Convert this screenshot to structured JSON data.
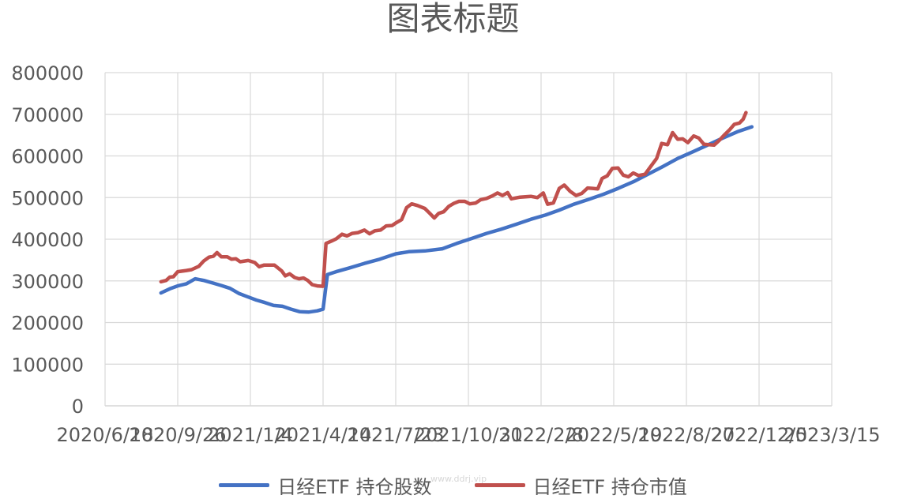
{
  "chart_data": {
    "type": "line",
    "title": "图表标题",
    "xlabel": "",
    "ylabel": "",
    "ylim": [
      0,
      800000
    ],
    "y_ticks": [
      "800000",
      "700000",
      "600000",
      "500000",
      "400000",
      "300000",
      "200000",
      "100000",
      "0"
    ],
    "x_tick_labels": [
      "2020/6/18",
      "2020/9/26",
      "2021/1/4",
      "2021/4/14",
      "2021/7/23",
      "2021/10/31",
      "2022/2/8",
      "2022/5/19",
      "2022/8/27",
      "2022/12/5",
      "2023/3/15"
    ],
    "xlim": [
      "2020/6/18",
      "2023/3/15"
    ],
    "grid": true,
    "legend_position": "bottom",
    "colors": {
      "series1": "#4472C4",
      "series2": "#C0504D",
      "grid": "#D9D9D9",
      "text": "#595959"
    },
    "series": [
      {
        "name": "日经ETF 持仓股数",
        "points": [
          [
            "2020/9/3",
            271000
          ],
          [
            "2020/9/15",
            281000
          ],
          [
            "2020/9/26",
            288000
          ],
          [
            "2020/10/8",
            293000
          ],
          [
            "2020/10/20",
            305000
          ],
          [
            "2020/11/1",
            301000
          ],
          [
            "2020/11/13",
            295000
          ],
          [
            "2020/11/25",
            289000
          ],
          [
            "2020/12/7",
            282000
          ],
          [
            "2020/12/19",
            270000
          ],
          [
            "2020/12/31",
            262000
          ],
          [
            "2021/1/12",
            254000
          ],
          [
            "2021/1/24",
            248000
          ],
          [
            "2021/2/5",
            241000
          ],
          [
            "2021/2/17",
            239000
          ],
          [
            "2021/3/1",
            232000
          ],
          [
            "2021/3/13",
            226000
          ],
          [
            "2021/3/25",
            225000
          ],
          [
            "2021/4/6",
            228000
          ],
          [
            "2021/4/14",
            232000
          ],
          [
            "2021/4/20",
            315000
          ],
          [
            "2021/5/2",
            322000
          ],
          [
            "2021/5/20",
            331000
          ],
          [
            "2021/6/10",
            342000
          ],
          [
            "2021/7/1",
            352000
          ],
          [
            "2021/7/23",
            365000
          ],
          [
            "2021/8/10",
            370000
          ],
          [
            "2021/9/1",
            372000
          ],
          [
            "2021/9/25",
            377000
          ],
          [
            "2021/10/15",
            390000
          ],
          [
            "2021/11/5",
            402000
          ],
          [
            "2021/11/25",
            414000
          ],
          [
            "2021/12/15",
            424000
          ],
          [
            "2022/1/5",
            436000
          ],
          [
            "2022/1/25",
            448000
          ],
          [
            "2022/2/14",
            458000
          ],
          [
            "2022/3/5",
            470000
          ],
          [
            "2022/3/25",
            484000
          ],
          [
            "2022/4/15",
            496000
          ],
          [
            "2022/5/5",
            508000
          ],
          [
            "2022/5/25",
            522000
          ],
          [
            "2022/6/15",
            538000
          ],
          [
            "2022/7/5",
            556000
          ],
          [
            "2022/7/25",
            574000
          ],
          [
            "2022/8/15",
            594000
          ],
          [
            "2022/9/5",
            610000
          ],
          [
            "2022/9/25",
            626000
          ],
          [
            "2022/10/15",
            642000
          ],
          [
            "2022/11/5",
            658000
          ],
          [
            "2022/11/25",
            670000
          ]
        ]
      },
      {
        "name": "日经ETF 持仓市值",
        "points": [
          [
            "2020/9/3",
            298000
          ],
          [
            "2020/9/10",
            301000
          ],
          [
            "2020/9/15",
            309000
          ],
          [
            "2020/9/20",
            310000
          ],
          [
            "2020/9/26",
            322000
          ],
          [
            "2020/10/8",
            325000
          ],
          [
            "2020/10/15",
            327000
          ],
          [
            "2020/10/25",
            335000
          ],
          [
            "2020/11/1",
            348000
          ],
          [
            "2020/11/8",
            357000
          ],
          [
            "2020/11/14",
            359000
          ],
          [
            "2020/11/19",
            368000
          ],
          [
            "2020/11/25",
            358000
          ],
          [
            "2020/12/3",
            358000
          ],
          [
            "2020/12/9",
            352000
          ],
          [
            "2020/12/15",
            353000
          ],
          [
            "2020/12/21",
            346000
          ],
          [
            "2021/1/1",
            349000
          ],
          [
            "2021/1/10",
            344000
          ],
          [
            "2021/1/16",
            334000
          ],
          [
            "2021/1/23",
            338000
          ],
          [
            "2021/2/6",
            338000
          ],
          [
            "2021/2/16",
            324000
          ],
          [
            "2021/2/21",
            312000
          ],
          [
            "2021/2/27",
            317000
          ],
          [
            "2021/3/6",
            308000
          ],
          [
            "2021/3/12",
            305000
          ],
          [
            "2021/3/18",
            307000
          ],
          [
            "2021/3/24",
            301000
          ],
          [
            "2021/3/30",
            291000
          ],
          [
            "2021/4/6",
            288000
          ],
          [
            "2021/4/14",
            287000
          ],
          [
            "2021/4/18",
            390000
          ],
          [
            "2021/4/25",
            395000
          ],
          [
            "2021/5/2",
            401000
          ],
          [
            "2021/5/10",
            412000
          ],
          [
            "2021/5/17",
            408000
          ],
          [
            "2021/5/24",
            414000
          ],
          [
            "2021/6/1",
            416000
          ],
          [
            "2021/6/10",
            422000
          ],
          [
            "2021/6/17",
            413000
          ],
          [
            "2021/6/24",
            420000
          ],
          [
            "2021/7/2",
            422000
          ],
          [
            "2021/7/10",
            432000
          ],
          [
            "2021/7/18",
            433000
          ],
          [
            "2021/7/24",
            440000
          ],
          [
            "2021/7/31",
            447000
          ],
          [
            "2021/8/7",
            476000
          ],
          [
            "2021/8/14",
            485000
          ],
          [
            "2021/8/22",
            481000
          ],
          [
            "2021/9/1",
            474000
          ],
          [
            "2021/9/8",
            462000
          ],
          [
            "2021/9/14",
            451000
          ],
          [
            "2021/9/20",
            462000
          ],
          [
            "2021/9/27",
            466000
          ],
          [
            "2021/10/4",
            479000
          ],
          [
            "2021/10/11",
            486000
          ],
          [
            "2021/10/18",
            491000
          ],
          [
            "2021/10/26",
            491000
          ],
          [
            "2021/11/2",
            485000
          ],
          [
            "2021/11/10",
            487000
          ],
          [
            "2021/11/17",
            495000
          ],
          [
            "2021/11/25",
            498000
          ],
          [
            "2021/12/3",
            504000
          ],
          [
            "2021/12/10",
            511000
          ],
          [
            "2021/12/17",
            505000
          ],
          [
            "2021/12/24",
            512000
          ],
          [
            "2021/12/29",
            497000
          ],
          [
            "2022/1/10",
            501000
          ],
          [
            "2022/1/25",
            503000
          ],
          [
            "2022/2/3",
            500000
          ],
          [
            "2022/2/11",
            511000
          ],
          [
            "2022/2/17",
            484000
          ],
          [
            "2022/2/25",
            487000
          ],
          [
            "2022/3/5",
            522000
          ],
          [
            "2022/3/12",
            530000
          ],
          [
            "2022/3/20",
            515000
          ],
          [
            "2022/3/28",
            505000
          ],
          [
            "2022/4/5",
            510000
          ],
          [
            "2022/4/13",
            523000
          ],
          [
            "2022/4/20",
            522000
          ],
          [
            "2022/4/27",
            521000
          ],
          [
            "2022/5/3",
            546000
          ],
          [
            "2022/5/10",
            552000
          ],
          [
            "2022/5/17",
            570000
          ],
          [
            "2022/5/25",
            571000
          ],
          [
            "2022/6/1",
            554000
          ],
          [
            "2022/6/8",
            550000
          ],
          [
            "2022/6/15",
            559000
          ],
          [
            "2022/6/22",
            553000
          ],
          [
            "2022/7/1",
            556000
          ],
          [
            "2022/7/9",
            575000
          ],
          [
            "2022/7/17",
            594000
          ],
          [
            "2022/7/24",
            630000
          ],
          [
            "2022/8/1",
            627000
          ],
          [
            "2022/8/8",
            656000
          ],
          [
            "2022/8/15",
            640000
          ],
          [
            "2022/8/22",
            641000
          ],
          [
            "2022/8/29",
            632000
          ],
          [
            "2022/9/6",
            648000
          ],
          [
            "2022/9/13",
            643000
          ],
          [
            "2022/9/20",
            628000
          ],
          [
            "2022/9/27",
            627000
          ],
          [
            "2022/10/4",
            626000
          ],
          [
            "2022/10/11",
            637000
          ],
          [
            "2022/10/18",
            650000
          ],
          [
            "2022/10/25",
            662000
          ],
          [
            "2022/11/1",
            676000
          ],
          [
            "2022/11/8",
            679000
          ],
          [
            "2022/11/13",
            688000
          ],
          [
            "2022/11/17",
            704000
          ]
        ]
      }
    ]
  },
  "watermark": "www.ddrj.vip"
}
